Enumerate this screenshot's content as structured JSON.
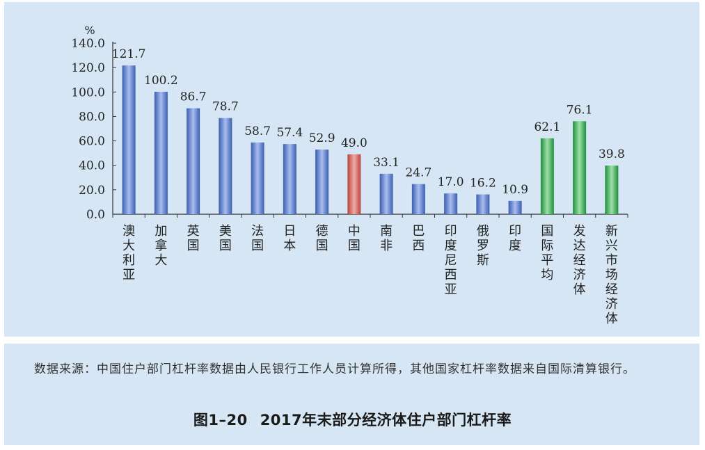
{
  "chart_data": {
    "type": "bar",
    "unit": "%",
    "ylim": [
      0,
      140
    ],
    "yticks": [
      "0.0",
      "20.0",
      "40.0",
      "60.0",
      "80.0",
      "100.0",
      "120.0",
      "140.0"
    ],
    "categories": [
      "澳大利亚",
      "加拿大",
      "英国",
      "美国",
      "法国",
      "日本",
      "德国",
      "中国",
      "南非",
      "巴西",
      "印度尼西亚",
      "俄罗斯",
      "印度",
      "国际平均",
      "发达经济体",
      "新兴市场经济体"
    ],
    "values": [
      121.7,
      100.2,
      86.7,
      78.7,
      58.7,
      57.4,
      52.9,
      49.0,
      33.1,
      24.7,
      17.0,
      16.2,
      10.9,
      62.1,
      76.1,
      39.8
    ],
    "value_labels": [
      "121.7",
      "100.2",
      "86.7",
      "78.7",
      "58.7",
      "57.4",
      "52.9",
      "49.0",
      "33.1",
      "24.7",
      "17.0",
      "16.2",
      "10.9",
      "62.1",
      "76.1",
      "39.8"
    ],
    "bar_colors": [
      "blue",
      "blue",
      "blue",
      "blue",
      "blue",
      "blue",
      "blue",
      "red",
      "blue",
      "blue",
      "blue",
      "blue",
      "blue",
      "green",
      "green",
      "green"
    ],
    "palette": {
      "blue": [
        "#3b5fb0",
        "#a9bdf0",
        "#3b5fb0"
      ],
      "red": [
        "#b8433c",
        "#f0aca6",
        "#b8433c"
      ],
      "green": [
        "#1e8f3c",
        "#9ee0a8",
        "#1e8f3c"
      ]
    },
    "grid": false
  },
  "note": {
    "label": "数据来源：",
    "text": "中国住户部门杠杆率数据由人民银行工作人员计算所得，其他国家杠杆率数据来自国际清算银行。"
  },
  "caption": {
    "number": "图1–20",
    "title": "2017年末部分经济体住户部门杠杆率"
  }
}
